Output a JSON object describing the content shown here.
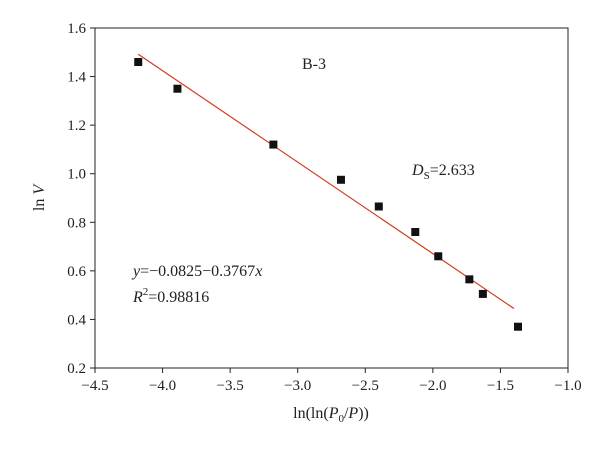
{
  "chart_data": {
    "type": "scatter",
    "sample_label": "B-3",
    "xlabel": "ln(ln(P0/P))",
    "ylabel": "ln V",
    "xlim": [
      -4.5,
      -1.0
    ],
    "ylim": [
      0.2,
      1.6
    ],
    "x_ticks": [
      -4.5,
      -4.0,
      -3.5,
      -3.0,
      -2.5,
      -2.0,
      -1.5,
      -1.0
    ],
    "y_ticks": [
      0.2,
      0.4,
      0.6,
      0.8,
      1.0,
      1.2,
      1.4,
      1.6
    ],
    "x_tick_labels": [
      "−4.5",
      "−4.0",
      "−3.5",
      "−3.0",
      "−2.5",
      "−2.0",
      "−1.5",
      "−1.0"
    ],
    "y_tick_labels": [
      "0.2",
      "0.4",
      "0.6",
      "0.8",
      "1.0",
      "1.2",
      "1.4",
      "1.6"
    ],
    "points": [
      {
        "x": -4.18,
        "y": 1.46
      },
      {
        "x": -3.89,
        "y": 1.35
      },
      {
        "x": -3.18,
        "y": 1.12
      },
      {
        "x": -2.68,
        "y": 0.975
      },
      {
        "x": -2.4,
        "y": 0.865
      },
      {
        "x": -2.13,
        "y": 0.76
      },
      {
        "x": -1.96,
        "y": 0.66
      },
      {
        "x": -1.73,
        "y": 0.565
      },
      {
        "x": -1.63,
        "y": 0.505
      },
      {
        "x": -1.37,
        "y": 0.37
      }
    ],
    "fit_line": {
      "x_start": -4.18,
      "x_end": -1.4,
      "intercept": -0.0825,
      "slope": -0.3767
    },
    "marker_color": "#111111",
    "line_color": "#d23c1e",
    "grid": false,
    "annotations": {
      "ds_label": "D",
      "ds_subscript": "S",
      "ds_value": "=2.633",
      "eq_lhs": "y",
      "eq_rhs": "=−0.0825−0.3767",
      "eq_var": "x",
      "r2_label": "R",
      "r2_sup": "2",
      "r2_value": "=0.98816"
    }
  }
}
